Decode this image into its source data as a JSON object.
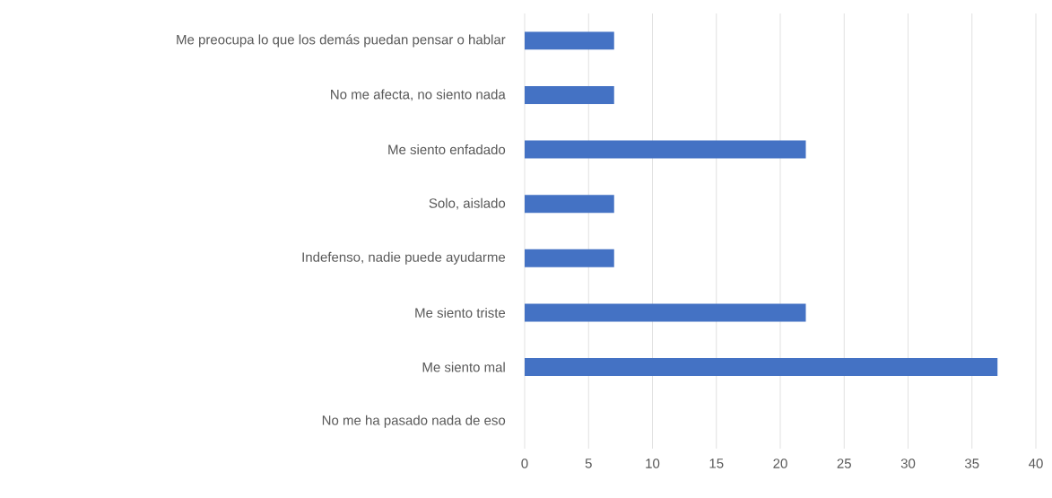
{
  "chart_data": {
    "type": "bar",
    "orientation": "horizontal",
    "categories": [
      "Me preocupa lo que los demás puedan pensar o hablar",
      "No me afecta, no siento nada",
      "Me siento enfadado",
      "Solo, aislado",
      "Indefenso, nadie puede ayudarme",
      "Me siento triste",
      "Me siento mal",
      "No me ha pasado nada de eso"
    ],
    "values": [
      7,
      7,
      22,
      7,
      7,
      22,
      37,
      0
    ],
    "color": "#4472c4",
    "xlim": [
      0,
      40
    ],
    "xticks": [
      0,
      5,
      10,
      15,
      20,
      25,
      30,
      35,
      40
    ],
    "grid": "x"
  }
}
